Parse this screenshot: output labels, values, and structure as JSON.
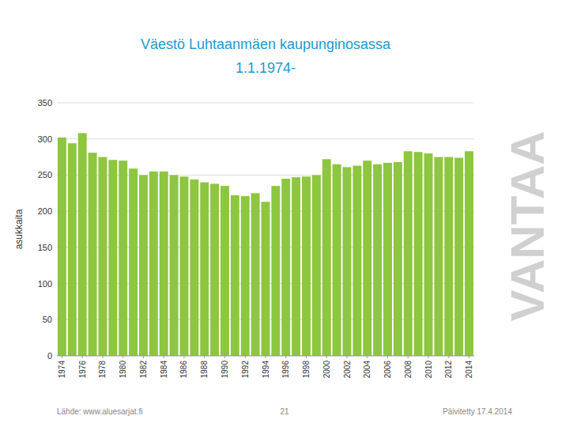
{
  "chart_data": {
    "type": "bar",
    "title": "Väestö Luhtaanmäen kaupunginosassa",
    "subtitle": "1.1.1974-",
    "y_label": "asukkaita",
    "x": [
      1974,
      1975,
      1976,
      1977,
      1978,
      1979,
      1980,
      1981,
      1982,
      1983,
      1984,
      1985,
      1986,
      1987,
      1988,
      1989,
      1990,
      1991,
      1992,
      1993,
      1994,
      1995,
      1996,
      1997,
      1998,
      1999,
      2000,
      2001,
      2002,
      2003,
      2004,
      2005,
      2006,
      2007,
      2008,
      2009,
      2010,
      2011,
      2012,
      2013,
      2014
    ],
    "values": [
      302,
      294,
      308,
      281,
      275,
      271,
      270,
      259,
      250,
      255,
      255,
      250,
      248,
      244,
      240,
      238,
      235,
      222,
      221,
      225,
      213,
      235,
      245,
      247,
      248,
      250,
      272,
      265,
      261,
      263,
      270,
      265,
      267,
      268,
      283,
      282,
      280,
      275,
      275,
      274,
      283
    ],
    "color": "#8dc63f",
    "xlim": [
      1973.5,
      2014.5
    ],
    "xticks": [
      1974,
      1976,
      1978,
      1980,
      1982,
      1984,
      1986,
      1988,
      1990,
      1992,
      1994,
      1996,
      1998,
      2000,
      2002,
      2004,
      2006,
      2008,
      2010,
      2012,
      2014
    ],
    "ylim": [
      0,
      350
    ],
    "yticks": [
      0,
      50,
      100,
      150,
      200,
      250,
      300,
      350
    ],
    "grid": true,
    "annotations": [
      "Lähde: www.aluesarjat.fi",
      "21",
      "Päivitetty 17.4.2014",
      "VANTAA"
    ]
  }
}
